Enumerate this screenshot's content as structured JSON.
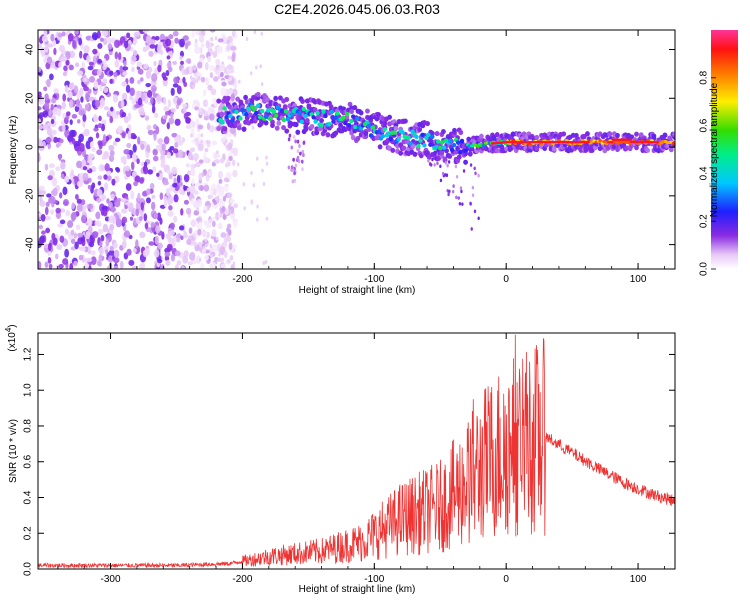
{
  "chart_data": [
    {
      "type": "heatmap",
      "title": "C2E4.2026.045.06.03.R03",
      "xlabel": "Height of straight line (km)",
      "ylabel": "Frequency (Hz)",
      "xlim": [
        -355,
        128
      ],
      "ylim": [
        -50,
        48
      ],
      "xticks": [
        "-300",
        "-200",
        "-100",
        "0",
        "100"
      ],
      "yticks": [
        "40",
        "20",
        "0",
        "-20",
        "-40"
      ],
      "colorbar": {
        "label": "Normalized spectral amplitude",
        "range": [
          0.0,
          1.0
        ],
        "ticks": [
          "0.0",
          "0.2",
          "0.4",
          "0.6",
          "0.8"
        ]
      },
      "ridge": [
        {
          "x": -215,
          "y": 13
        },
        {
          "x": -190,
          "y": 15
        },
        {
          "x": -160,
          "y": 13
        },
        {
          "x": -120,
          "y": 11
        },
        {
          "x": -100,
          "y": 7
        },
        {
          "x": -80,
          "y": 4
        },
        {
          "x": -60,
          "y": 3
        },
        {
          "x": -40,
          "y": 0
        },
        {
          "x": -20,
          "y": 1
        },
        {
          "x": 0,
          "y": 2
        },
        {
          "x": 50,
          "y": 2
        },
        {
          "x": 100,
          "y": 2
        },
        {
          "x": 128,
          "y": 2
        }
      ]
    },
    {
      "type": "line",
      "xlabel": "Height of straight line (km)",
      "ylabel": "SNR (10 * v/v)",
      "yscale_label": "(x10",
      "yscale_exp": "4",
      "yscale_close": ")",
      "xlim": [
        -355,
        128
      ],
      "ylim": [
        0,
        1.32
      ],
      "xticks": [
        "-300",
        "-200",
        "-100",
        "0",
        "100"
      ],
      "yticks": [
        "0.0",
        "0.2",
        "0.4",
        "0.6",
        "0.8",
        "1.0",
        "1.2"
      ],
      "series": [
        {
          "name": "SNR",
          "color": "#ee3333",
          "envelope": [
            {
              "x": -355,
              "y": 0.02
            },
            {
              "x": -250,
              "y": 0.02
            },
            {
              "x": -210,
              "y": 0.03
            },
            {
              "x": -180,
              "y": 0.07
            },
            {
              "x": -140,
              "y": 0.1
            },
            {
              "x": -110,
              "y": 0.15
            },
            {
              "x": -80,
              "y": 0.28
            },
            {
              "x": -50,
              "y": 0.35
            },
            {
              "x": -30,
              "y": 0.48
            },
            {
              "x": -15,
              "y": 0.6
            },
            {
              "x": 0,
              "y": 0.68
            },
            {
              "x": 15,
              "y": 0.72
            },
            {
              "x": 30,
              "y": 0.74
            },
            {
              "x": 50,
              "y": 0.65
            },
            {
              "x": 70,
              "y": 0.56
            },
            {
              "x": 90,
              "y": 0.48
            },
            {
              "x": 110,
              "y": 0.42
            },
            {
              "x": 128,
              "y": 0.38
            }
          ],
          "peaks": [
            {
              "x": -13,
              "y": 1.25
            },
            {
              "x": 7,
              "y": 1.31
            },
            {
              "x": -25,
              "y": 0.95
            },
            {
              "x": 10,
              "y": 1.12
            },
            {
              "x": -2,
              "y": 0.98
            }
          ]
        }
      ]
    }
  ]
}
